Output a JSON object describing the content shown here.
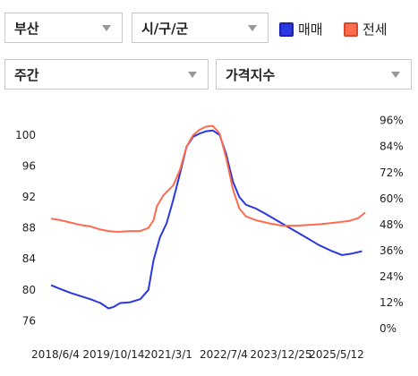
{
  "controls": {
    "region": "부산",
    "district": "시/구/군",
    "period": "주간",
    "index_type": "가격지수"
  },
  "colors": {
    "sale": "#2b37e0",
    "jeonse": "#ff6b4d"
  },
  "chart_data": {
    "type": "line",
    "x_ticks": [
      "2018/6/4",
      "2019/10/14",
      "2021/3/1",
      "2022/7/4",
      "2023/12/25",
      "2025/5/12"
    ],
    "x_range": [
      "2018-06-04",
      "2026-05-01"
    ],
    "y_left": {
      "ticks": [
        "100",
        "96",
        "92",
        "88",
        "84",
        "80",
        "76"
      ],
      "range": [
        75,
        103
      ]
    },
    "y_right": {
      "ticks": [
        "96%",
        "84%",
        "72%",
        "60%",
        "48%",
        "36%",
        "24%",
        "12%",
        "0%"
      ],
      "range": [
        0,
        100
      ]
    },
    "series": [
      {
        "name": "매매",
        "color": "#2b37e0",
        "points": [
          [
            "2018-06-04",
            80.6
          ],
          [
            "2018-09-01",
            80.1
          ],
          [
            "2018-12-01",
            79.6
          ],
          [
            "2019-03-01",
            79.2
          ],
          [
            "2019-06-01",
            78.8
          ],
          [
            "2019-09-01",
            78.3
          ],
          [
            "2019-11-15",
            77.6
          ],
          [
            "2020-01-01",
            77.8
          ],
          [
            "2020-03-01",
            78.3
          ],
          [
            "2020-06-01",
            78.4
          ],
          [
            "2020-09-01",
            78.8
          ],
          [
            "2020-11-15",
            80.0
          ],
          [
            "2021-01-01",
            83.8
          ],
          [
            "2021-03-01",
            86.8
          ],
          [
            "2021-05-01",
            88.6
          ],
          [
            "2021-07-01",
            91.6
          ],
          [
            "2021-09-01",
            95.0
          ],
          [
            "2021-11-01",
            98.5
          ],
          [
            "2022-01-01",
            99.8
          ],
          [
            "2022-03-01",
            100.2
          ],
          [
            "2022-05-01",
            100.5
          ],
          [
            "2022-07-01",
            100.6
          ],
          [
            "2022-09-01",
            100.0
          ],
          [
            "2022-11-01",
            97.5
          ],
          [
            "2023-01-01",
            94.0
          ],
          [
            "2023-03-01",
            92.0
          ],
          [
            "2023-05-01",
            91.0
          ],
          [
            "2023-08-01",
            90.5
          ],
          [
            "2023-11-01",
            89.8
          ],
          [
            "2024-03-01",
            88.8
          ],
          [
            "2024-07-01",
            87.8
          ],
          [
            "2024-11-01",
            86.8
          ],
          [
            "2025-03-01",
            85.8
          ],
          [
            "2025-07-01",
            85.0
          ],
          [
            "2025-10-01",
            84.5
          ],
          [
            "2026-01-01",
            84.7
          ],
          [
            "2026-04-01",
            85.0
          ]
        ]
      },
      {
        "name": "전세",
        "color": "#ff6b4d",
        "points": [
          [
            "2018-06-04",
            89.2
          ],
          [
            "2018-09-01",
            89.0
          ],
          [
            "2018-12-01",
            88.7
          ],
          [
            "2019-03-01",
            88.4
          ],
          [
            "2019-06-01",
            88.2
          ],
          [
            "2019-09-01",
            87.8
          ],
          [
            "2019-11-15",
            87.6
          ],
          [
            "2020-02-01",
            87.5
          ],
          [
            "2020-06-01",
            87.6
          ],
          [
            "2020-09-01",
            87.6
          ],
          [
            "2020-11-15",
            88.0
          ],
          [
            "2021-01-01",
            89.0
          ],
          [
            "2021-02-01",
            90.8
          ],
          [
            "2021-04-01",
            92.2
          ],
          [
            "2021-07-01",
            93.5
          ],
          [
            "2021-09-01",
            95.5
          ],
          [
            "2021-11-01",
            98.5
          ],
          [
            "2022-01-01",
            100.0
          ],
          [
            "2022-03-01",
            100.7
          ],
          [
            "2022-05-01",
            101.1
          ],
          [
            "2022-07-01",
            101.2
          ],
          [
            "2022-09-01",
            100.2
          ],
          [
            "2022-11-01",
            97.0
          ],
          [
            "2023-01-01",
            93.0
          ],
          [
            "2023-03-01",
            90.5
          ],
          [
            "2023-05-01",
            89.5
          ],
          [
            "2023-08-01",
            89.0
          ],
          [
            "2023-12-01",
            88.6
          ],
          [
            "2024-04-01",
            88.3
          ],
          [
            "2024-08-01",
            88.3
          ],
          [
            "2024-12-01",
            88.4
          ],
          [
            "2025-04-01",
            88.5
          ],
          [
            "2025-08-01",
            88.7
          ],
          [
            "2025-12-01",
            88.9
          ],
          [
            "2026-03-01",
            89.3
          ],
          [
            "2026-05-01",
            90.0
          ]
        ]
      }
    ],
    "legend_position": "top-right"
  }
}
